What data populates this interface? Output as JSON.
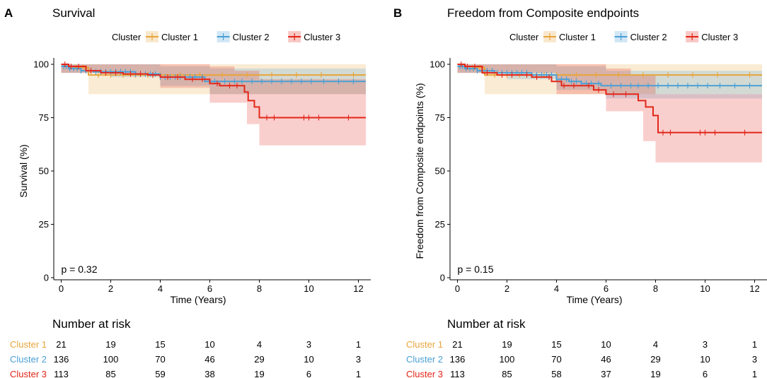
{
  "chart_data": [
    {
      "panel_label": "A",
      "type": "line",
      "title": "Survival",
      "xlabel": "Time (Years)",
      "ylabel": "Survival (%)",
      "xlim": [
        -0.3,
        12.5
      ],
      "ylim": [
        -1,
        101
      ],
      "x_ticks": [
        0,
        2,
        4,
        6,
        8,
        10,
        12
      ],
      "y_ticks": [
        0,
        25,
        50,
        75,
        100
      ],
      "legend_title": "Cluster",
      "legend_position": "top",
      "p_value": "p = 0.32",
      "series": [
        {
          "name": "Cluster 1",
          "color": "#E7A53B",
          "steps": [
            [
              0,
              100
            ],
            [
              0.15,
              99
            ],
            [
              0.5,
              98.5
            ],
            [
              1.1,
              95
            ],
            [
              12.3,
              95
            ]
          ],
          "ci_upper": [
            [
              0,
              100
            ],
            [
              1.1,
              100
            ],
            [
              12.3,
              100
            ]
          ],
          "ci_lower": [
            [
              0,
              96
            ],
            [
              1.1,
              86
            ],
            [
              12.3,
              86
            ]
          ],
          "censors": [
            0.3,
            0.6,
            0.9,
            1.5,
            2.0,
            2.5,
            3.0,
            3.5,
            4.0,
            4.8,
            5.6,
            6.5,
            7.5,
            8.5,
            9.5,
            10.5,
            11.8
          ]
        },
        {
          "name": "Cluster 2",
          "color": "#4A9FD6",
          "steps": [
            [
              0,
              99
            ],
            [
              0.3,
              98
            ],
            [
              0.8,
              97
            ],
            [
              1.3,
              96.5
            ],
            [
              3.0,
              95.5
            ],
            [
              4.0,
              94
            ],
            [
              5.8,
              92
            ],
            [
              12.3,
              92
            ]
          ],
          "ci_upper": [
            [
              0,
              100
            ],
            [
              4,
              99
            ],
            [
              6,
              98
            ],
            [
              12.3,
              98
            ]
          ],
          "ci_lower": [
            [
              0,
              96
            ],
            [
              2,
              94
            ],
            [
              4,
              90
            ],
            [
              6,
              86
            ],
            [
              12.3,
              86
            ]
          ],
          "censors": [
            0.1,
            0.2,
            0.35,
            0.5,
            0.65,
            0.8,
            1.0,
            1.2,
            1.4,
            1.6,
            1.8,
            2.0,
            2.2,
            2.4,
            2.6,
            2.8,
            3.0,
            3.2,
            3.4,
            3.6,
            3.8,
            4.0,
            4.2,
            4.4,
            4.6,
            4.8,
            5.0,
            5.2,
            5.4,
            5.7,
            6.2,
            6.6,
            7.0,
            7.3,
            7.7,
            8.1,
            8.5,
            8.9,
            9.3,
            9.7,
            10.1,
            10.6,
            11.2,
            11.8
          ]
        },
        {
          "name": "Cluster 3",
          "color": "#E2261A",
          "steps": [
            [
              0,
              100
            ],
            [
              0.3,
              99
            ],
            [
              1.0,
              97
            ],
            [
              1.6,
              96
            ],
            [
              2.5,
              95.5
            ],
            [
              3.5,
              95
            ],
            [
              4.0,
              94
            ],
            [
              5.0,
              93
            ],
            [
              6.0,
              91
            ],
            [
              6.4,
              90
            ],
            [
              7.4,
              87
            ],
            [
              7.55,
              83
            ],
            [
              7.8,
              80
            ],
            [
              8.0,
              75
            ],
            [
              12.3,
              75
            ]
          ],
          "ci_upper": [
            [
              0,
              100
            ],
            [
              6,
              99
            ],
            [
              7,
              97
            ],
            [
              8,
              93
            ],
            [
              12.3,
              93
            ]
          ],
          "ci_lower": [
            [
              0,
              96
            ],
            [
              4,
              89
            ],
            [
              6,
              82
            ],
            [
              7.5,
              72
            ],
            [
              8,
              62
            ],
            [
              12.3,
              62
            ]
          ],
          "censors": [
            0.15,
            0.4,
            0.7,
            1.2,
            1.8,
            2.2,
            2.8,
            3.2,
            3.7,
            4.3,
            4.7,
            5.3,
            5.7,
            6.3,
            6.8,
            7.1,
            8.3,
            8.6,
            9.8,
            10.0,
            10.4,
            11.6
          ]
        }
      ],
      "risk_table": {
        "title": "Number at risk",
        "times": [
          0,
          2,
          4,
          6,
          8,
          10,
          12
        ],
        "rows": [
          {
            "label": "Cluster 1",
            "color": "#E7A53B",
            "values": [
              "21",
              "19",
              "15",
              "10",
              "4",
              "3",
              "1"
            ]
          },
          {
            "label": "Cluster 2",
            "color": "#4A9FD6",
            "values": [
              "136",
              "100",
              "70",
              "46",
              "29",
              "10",
              "3"
            ]
          },
          {
            "label": "Cluster 3",
            "color": "#E2261A",
            "values": [
              "113",
              "85",
              "59",
              "38",
              "19",
              "6",
              "1"
            ]
          }
        ]
      }
    },
    {
      "panel_label": "B",
      "type": "line",
      "title": "Freedom from Composite endpoints",
      "xlabel": "Time (Years)",
      "ylabel": "Freedom from Composite endpoints (%)",
      "xlim": [
        -0.3,
        12.5
      ],
      "ylim": [
        -1,
        101
      ],
      "x_ticks": [
        0,
        2,
        4,
        6,
        8,
        10,
        12
      ],
      "y_ticks": [
        0,
        25,
        50,
        75,
        100
      ],
      "legend_title": "Cluster",
      "legend_position": "top",
      "p_value": "p = 0.15",
      "series": [
        {
          "name": "Cluster 1",
          "color": "#E7A53B",
          "steps": [
            [
              0,
              100
            ],
            [
              0.2,
              99
            ],
            [
              0.6,
              98.5
            ],
            [
              1.1,
              95
            ],
            [
              12.3,
              95
            ]
          ],
          "ci_upper": [
            [
              0,
              100
            ],
            [
              1.1,
              100
            ],
            [
              12.3,
              100
            ]
          ],
          "ci_lower": [
            [
              0,
              96
            ],
            [
              1.1,
              86
            ],
            [
              12.3,
              86
            ]
          ],
          "censors": [
            0.3,
            0.6,
            0.9,
            1.5,
            2.0,
            2.5,
            3.0,
            3.5,
            4.0,
            4.8,
            5.6,
            6.5,
            7.5,
            8.5,
            9.5,
            10.5,
            11.8
          ]
        },
        {
          "name": "Cluster 2",
          "color": "#4A9FD6",
          "steps": [
            [
              0,
              99
            ],
            [
              0.3,
              98
            ],
            [
              0.8,
              97
            ],
            [
              1.5,
              96
            ],
            [
              3.0,
              95
            ],
            [
              4.0,
              93
            ],
            [
              4.5,
              92
            ],
            [
              5.0,
              91
            ],
            [
              5.8,
              90
            ],
            [
              12.3,
              90
            ]
          ],
          "ci_upper": [
            [
              0,
              100
            ],
            [
              4,
              99
            ],
            [
              6,
              97
            ],
            [
              12.3,
              97
            ]
          ],
          "ci_lower": [
            [
              0,
              96
            ],
            [
              2,
              93
            ],
            [
              4,
              88
            ],
            [
              6,
              84
            ],
            [
              12.3,
              84
            ]
          ],
          "censors": [
            0.1,
            0.2,
            0.35,
            0.5,
            0.65,
            0.8,
            1.0,
            1.2,
            1.4,
            1.6,
            1.8,
            2.0,
            2.2,
            2.4,
            2.6,
            2.8,
            3.0,
            3.2,
            3.4,
            3.6,
            3.8,
            4.0,
            4.2,
            4.4,
            4.6,
            4.8,
            5.0,
            5.2,
            5.4,
            5.7,
            6.2,
            6.6,
            7.0,
            7.3,
            7.7,
            8.1,
            8.5,
            8.9,
            9.3,
            9.7,
            10.1,
            10.6,
            11.2,
            11.8
          ]
        },
        {
          "name": "Cluster 3",
          "color": "#E2261A",
          "steps": [
            [
              0,
              100
            ],
            [
              0.3,
              99
            ],
            [
              1.0,
              96
            ],
            [
              1.6,
              95
            ],
            [
              3.0,
              94
            ],
            [
              3.8,
              92
            ],
            [
              4.2,
              90
            ],
            [
              5.5,
              88
            ],
            [
              6.0,
              86
            ],
            [
              7.0,
              86
            ],
            [
              7.3,
              83
            ],
            [
              7.6,
              80
            ],
            [
              7.9,
              76
            ],
            [
              8.1,
              68
            ],
            [
              12.3,
              68
            ]
          ],
          "ci_upper": [
            [
              0,
              100
            ],
            [
              6,
              98
            ],
            [
              7,
              95
            ],
            [
              8,
              86
            ],
            [
              12.3,
              86
            ]
          ],
          "ci_lower": [
            [
              0,
              96
            ],
            [
              4,
              86
            ],
            [
              6,
              78
            ],
            [
              7.5,
              64
            ],
            [
              8,
              54
            ],
            [
              12.3,
              54
            ]
          ],
          "censors": [
            0.15,
            0.4,
            0.7,
            1.2,
            1.8,
            2.2,
            2.8,
            3.2,
            3.7,
            4.3,
            4.7,
            5.3,
            5.7,
            6.3,
            6.8,
            8.3,
            8.6,
            9.8,
            10.0,
            10.4,
            11.6
          ]
        }
      ],
      "risk_table": {
        "title": "Number at risk",
        "times": [
          0,
          2,
          4,
          6,
          8,
          10,
          12
        ],
        "rows": [
          {
            "label": "Cluster 1",
            "color": "#E7A53B",
            "values": [
              "21",
              "19",
              "15",
              "10",
              "4",
              "3",
              "1"
            ]
          },
          {
            "label": "Cluster 2",
            "color": "#4A9FD6",
            "values": [
              "136",
              "100",
              "70",
              "46",
              "29",
              "10",
              "3"
            ]
          },
          {
            "label": "Cluster 3",
            "color": "#E2261A",
            "values": [
              "113",
              "85",
              "58",
              "37",
              "19",
              "6",
              "1"
            ]
          }
        ]
      }
    }
  ]
}
